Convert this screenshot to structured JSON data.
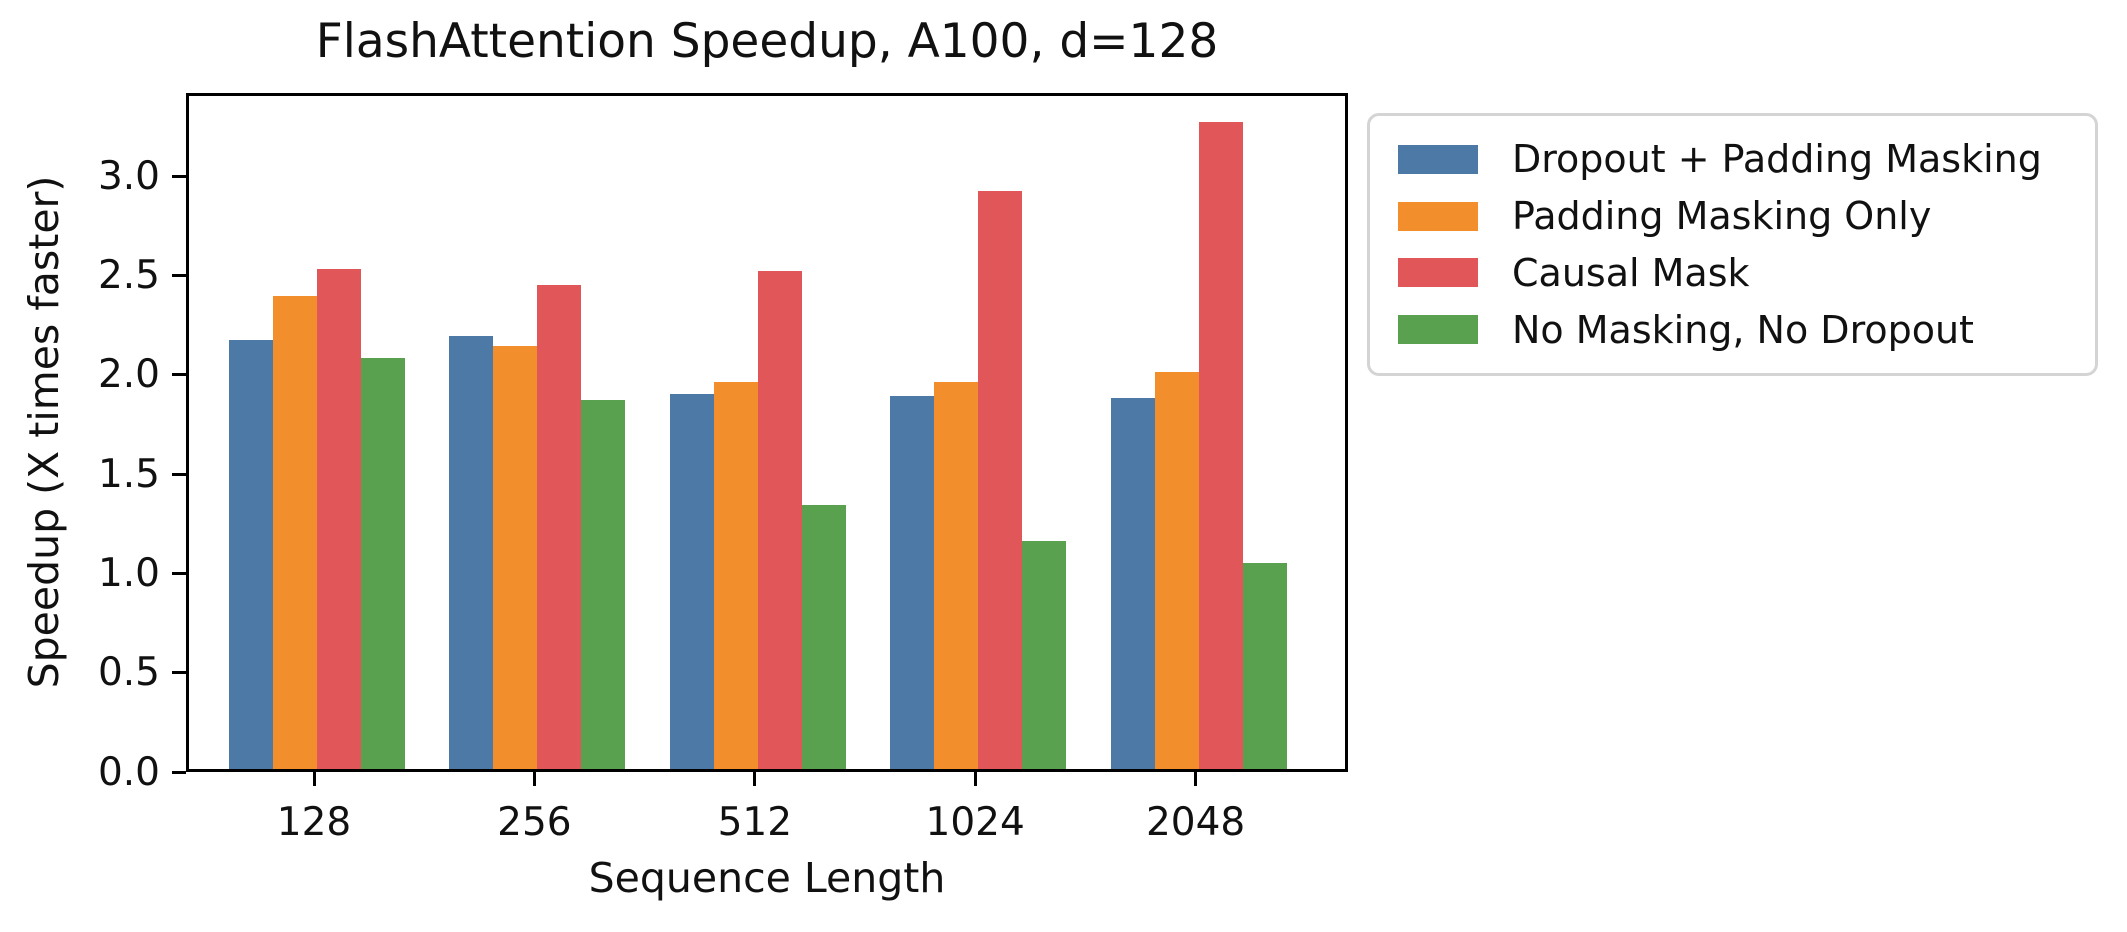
{
  "figure": {
    "background": "#ffffff",
    "text_color": "#111111",
    "axis_color": "#000000",
    "legend_border_color": "#d4d4d4"
  },
  "chart_data": {
    "type": "bar",
    "title": "FlashAttention Speedup, A100, d=128",
    "xlabel": "Sequence Length",
    "ylabel": "Speedup (X times faster)",
    "categories": [
      "128",
      "256",
      "512",
      "1024",
      "2048"
    ],
    "series": [
      {
        "name": "Dropout + Padding Masking",
        "color": "#4d79a7",
        "values": [
          2.16,
          2.18,
          1.89,
          1.88,
          1.87
        ]
      },
      {
        "name": "Padding Masking Only",
        "color": "#f28e2b",
        "values": [
          2.38,
          2.13,
          1.95,
          1.95,
          2.0
        ]
      },
      {
        "name": "Causal Mask",
        "color": "#e15759",
        "values": [
          2.52,
          2.44,
          2.51,
          2.91,
          3.26
        ]
      },
      {
        "name": "No Masking, No Dropout",
        "color": "#59a14f",
        "values": [
          2.07,
          1.86,
          1.33,
          1.15,
          1.04
        ]
      }
    ],
    "ylim": [
      0,
      3.42
    ],
    "yticks": [
      0.0,
      0.5,
      1.0,
      1.5,
      2.0,
      2.5,
      3.0
    ],
    "ytick_labels": [
      "0.0",
      "0.5",
      "1.0",
      "1.5",
      "2.0",
      "2.5",
      "3.0"
    ],
    "grid": false,
    "legend_position": "outside-right",
    "bar_edge": "none"
  }
}
